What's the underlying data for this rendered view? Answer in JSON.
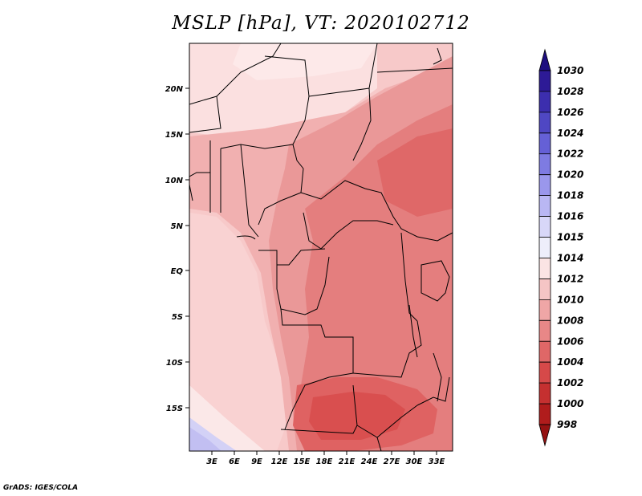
{
  "title": "MSLP [hPa], VT: 2020102712",
  "footer": "GrADS: IGES/COLA",
  "lat_labels": [
    "20N",
    "15N",
    "10N",
    "5N",
    "EQ",
    "5S",
    "10S",
    "15S"
  ],
  "lon_labels": [
    "3E",
    "6E",
    "9E",
    "12E",
    "15E",
    "18E",
    "21E",
    "24E",
    "27E",
    "30E",
    "33E"
  ],
  "colorbar": {
    "labels": [
      "1030",
      "1028",
      "1026",
      "1024",
      "1022",
      "1020",
      "1018",
      "1016",
      "1015",
      "1014",
      "1012",
      "1010",
      "1008",
      "1006",
      "1004",
      "1002",
      "1000",
      "998"
    ],
    "colors": [
      "#1e0e7f",
      "#2d1a96",
      "#3c2eae",
      "#4f47c3",
      "#6560d6",
      "#7e7be2",
      "#9a97ec",
      "#b9b7f3",
      "#d8d7f8",
      "#eeeefb",
      "#fbe4e4",
      "#f5c5c5",
      "#efa6a6",
      "#e88787",
      "#df6767",
      "#d64949",
      "#c53030",
      "#b01c1c",
      "#951212"
    ]
  },
  "map_fill": {
    "ocean_near_coast": "#f7c9c9",
    "high_pressure_southwest": "#c7c4f3",
    "north_pale": "#f9dcdc",
    "central_low": "#e88a8a",
    "deep_low": "#df6363"
  }
}
